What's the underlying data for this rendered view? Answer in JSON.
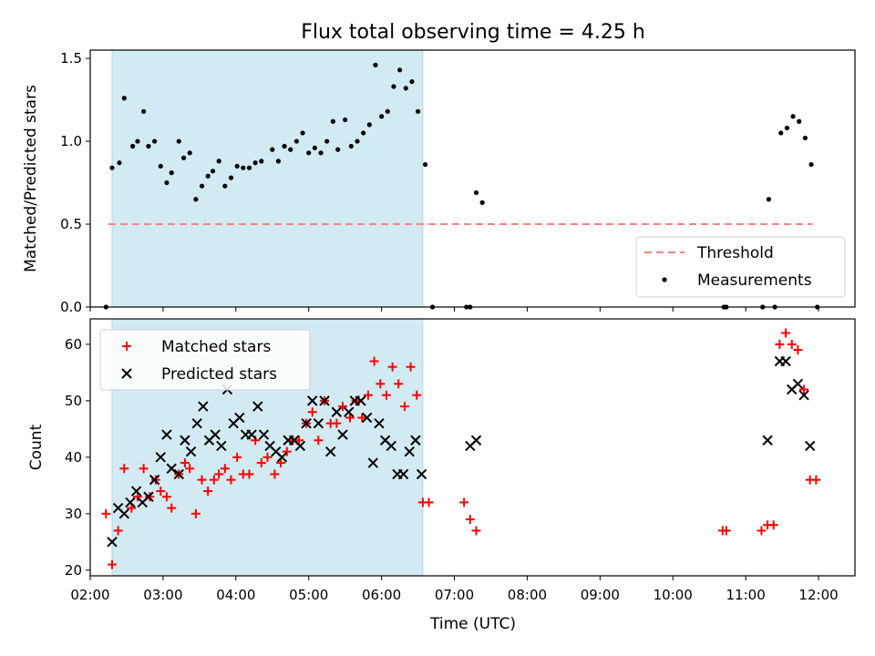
{
  "title": "Flux total observing time = 4.25 h",
  "colors": {
    "matched": "#ff0000",
    "predicted": "#000000",
    "measurement": "#000000",
    "threshold": "#ff7f7f",
    "span": "#add8e6"
  },
  "chart_data": [
    {
      "type": "scatter",
      "xlabel": "",
      "ylabel": "Matched/Predicted stars",
      "xlim": [
        "02:00",
        "12:30"
      ],
      "ylim": [
        0,
        1.55
      ],
      "yticks": [
        "0.0",
        "0.5",
        "1.0",
        "1.5"
      ],
      "shaded_interval": [
        "02:18",
        "06:34"
      ],
      "legend": {
        "position": "lower right",
        "entries": [
          "Threshold",
          "Measurements"
        ]
      },
      "threshold": {
        "name": "Threshold",
        "value": 0.5,
        "x_range": [
          "02:15",
          "11:55"
        ],
        "style": "dashed"
      },
      "series": [
        {
          "name": "Measurements",
          "marker": "dot",
          "points": [
            [
              "02:13",
              0.0
            ],
            [
              "02:18",
              0.84
            ],
            [
              "02:24",
              0.87
            ],
            [
              "02:28",
              1.26
            ],
            [
              "02:35",
              0.97
            ],
            [
              "02:39",
              1.0
            ],
            [
              "02:44",
              1.18
            ],
            [
              "02:48",
              0.97
            ],
            [
              "02:53",
              1.0
            ],
            [
              "02:58",
              0.85
            ],
            [
              "03:03",
              0.75
            ],
            [
              "03:07",
              0.81
            ],
            [
              "03:13",
              1.0
            ],
            [
              "03:17",
              0.9
            ],
            [
              "03:22",
              0.93
            ],
            [
              "03:27",
              0.65
            ],
            [
              "03:32",
              0.73
            ],
            [
              "03:37",
              0.79
            ],
            [
              "03:41",
              0.82
            ],
            [
              "03:46",
              0.88
            ],
            [
              "03:51",
              0.73
            ],
            [
              "03:56",
              0.78
            ],
            [
              "04:01",
              0.85
            ],
            [
              "04:06",
              0.84
            ],
            [
              "04:11",
              0.84
            ],
            [
              "04:16",
              0.87
            ],
            [
              "04:21",
              0.88
            ],
            [
              "04:30",
              0.95
            ],
            [
              "04:35",
              0.88
            ],
            [
              "04:40",
              0.97
            ],
            [
              "04:45",
              0.95
            ],
            [
              "04:50",
              1.0
            ],
            [
              "04:55",
              1.05
            ],
            [
              "05:00",
              0.93
            ],
            [
              "05:05",
              0.96
            ],
            [
              "05:10",
              0.93
            ],
            [
              "05:15",
              1.0
            ],
            [
              "05:20",
              1.12
            ],
            [
              "05:24",
              0.95
            ],
            [
              "05:30",
              1.13
            ],
            [
              "05:35",
              0.97
            ],
            [
              "05:40",
              1.0
            ],
            [
              "05:45",
              1.05
            ],
            [
              "05:50",
              1.1
            ],
            [
              "05:55",
              1.46
            ],
            [
              "06:00",
              1.15
            ],
            [
              "06:05",
              1.18
            ],
            [
              "06:10",
              1.33
            ],
            [
              "06:15",
              1.43
            ],
            [
              "06:20",
              1.32
            ],
            [
              "06:25",
              1.36
            ],
            [
              "06:30",
              1.18
            ],
            [
              "06:36",
              0.86
            ],
            [
              "06:42",
              0.0
            ],
            [
              "07:10",
              0.0
            ],
            [
              "07:13",
              0.0
            ],
            [
              "07:18",
              0.69
            ],
            [
              "07:23",
              0.63
            ],
            [
              "10:42",
              0.0
            ],
            [
              "10:44",
              0.0
            ],
            [
              "11:14",
              0.0
            ],
            [
              "11:19",
              0.65
            ],
            [
              "11:24",
              0.0
            ],
            [
              "11:29",
              1.05
            ],
            [
              "11:34",
              1.08
            ],
            [
              "11:39",
              1.15
            ],
            [
              "11:44",
              1.12
            ],
            [
              "11:49",
              1.02
            ],
            [
              "11:54",
              0.86
            ],
            [
              "11:59",
              0.0
            ]
          ]
        }
      ]
    },
    {
      "type": "scatter",
      "xlabel": "Time (UTC)",
      "ylabel": "Count",
      "xlim": [
        "02:00",
        "12:30"
      ],
      "ylim": [
        19,
        64.5
      ],
      "xticks": [
        "02:00",
        "03:00",
        "04:00",
        "05:00",
        "06:00",
        "07:00",
        "08:00",
        "09:00",
        "10:00",
        "11:00",
        "12:00"
      ],
      "yticks": [
        "20",
        "30",
        "40",
        "50",
        "60"
      ],
      "shaded_interval": [
        "02:18",
        "06:34"
      ],
      "legend": {
        "position": "upper left",
        "entries": [
          "Matched stars",
          "Predicted stars"
        ]
      },
      "series": [
        {
          "name": "Matched stars",
          "marker": "plus",
          "points": [
            [
              "02:13",
              30
            ],
            [
              "02:18",
              21
            ],
            [
              "02:23",
              27
            ],
            [
              "02:28",
              38
            ],
            [
              "02:34",
              31
            ],
            [
              "02:39",
              33
            ],
            [
              "02:44",
              38
            ],
            [
              "02:49",
              33
            ],
            [
              "02:54",
              36
            ],
            [
              "02:58",
              34
            ],
            [
              "03:03",
              33
            ],
            [
              "03:07",
              31
            ],
            [
              "03:13",
              37
            ],
            [
              "03:18",
              39
            ],
            [
              "03:22",
              38
            ],
            [
              "03:27",
              30
            ],
            [
              "03:32",
              36
            ],
            [
              "03:37",
              34
            ],
            [
              "03:42",
              36
            ],
            [
              "03:46",
              37
            ],
            [
              "03:51",
              38
            ],
            [
              "03:56",
              36
            ],
            [
              "04:01",
              40
            ],
            [
              "04:06",
              37
            ],
            [
              "04:11",
              37
            ],
            [
              "04:16",
              43
            ],
            [
              "04:21",
              39
            ],
            [
              "04:26",
              40
            ],
            [
              "04:32",
              37
            ],
            [
              "04:37",
              39
            ],
            [
              "04:42",
              41
            ],
            [
              "04:47",
              43
            ],
            [
              "04:52",
              43
            ],
            [
              "04:58",
              46
            ],
            [
              "05:03",
              48
            ],
            [
              "05:08",
              43
            ],
            [
              "05:13",
              50
            ],
            [
              "05:18",
              46
            ],
            [
              "05:23",
              46
            ],
            [
              "05:28",
              49
            ],
            [
              "05:34",
              47
            ],
            [
              "05:39",
              50
            ],
            [
              "05:44",
              47
            ],
            [
              "05:49",
              51
            ],
            [
              "05:54",
              57
            ],
            [
              "05:59",
              53
            ],
            [
              "06:04",
              51
            ],
            [
              "06:09",
              56
            ],
            [
              "06:14",
              53
            ],
            [
              "06:19",
              49
            ],
            [
              "06:24",
              56
            ],
            [
              "06:29",
              51
            ],
            [
              "06:34",
              32
            ],
            [
              "06:39",
              32
            ],
            [
              "07:08",
              32
            ],
            [
              "07:13",
              29
            ],
            [
              "07:18",
              27
            ],
            [
              "10:41",
              27
            ],
            [
              "10:44",
              27
            ],
            [
              "11:13",
              27
            ],
            [
              "11:18",
              28
            ],
            [
              "11:23",
              28
            ],
            [
              "11:28",
              60
            ],
            [
              "11:33",
              62
            ],
            [
              "11:38",
              60
            ],
            [
              "11:43",
              59
            ],
            [
              "11:48",
              52
            ],
            [
              "11:53",
              36
            ],
            [
              "11:58",
              36
            ]
          ]
        },
        {
          "name": "Predicted stars",
          "marker": "x",
          "points": [
            [
              "02:18",
              25
            ],
            [
              "02:23",
              31
            ],
            [
              "02:28",
              30
            ],
            [
              "02:33",
              32
            ],
            [
              "02:38",
              34
            ],
            [
              "02:43",
              32
            ],
            [
              "02:48",
              33
            ],
            [
              "02:53",
              36
            ],
            [
              "02:58",
              40
            ],
            [
              "03:03",
              44
            ],
            [
              "03:07",
              38
            ],
            [
              "03:13",
              37
            ],
            [
              "03:18",
              43
            ],
            [
              "03:23",
              41
            ],
            [
              "03:28",
              46
            ],
            [
              "03:33",
              49
            ],
            [
              "03:38",
              43
            ],
            [
              "03:43",
              44
            ],
            [
              "03:48",
              42
            ],
            [
              "03:53",
              52
            ],
            [
              "03:58",
              46
            ],
            [
              "04:03",
              47
            ],
            [
              "04:08",
              44
            ],
            [
              "04:13",
              44
            ],
            [
              "04:18",
              49
            ],
            [
              "04:23",
              44
            ],
            [
              "04:28",
              42
            ],
            [
              "04:33",
              41
            ],
            [
              "04:38",
              40
            ],
            [
              "04:43",
              43
            ],
            [
              "04:48",
              43
            ],
            [
              "04:53",
              42
            ],
            [
              "04:58",
              46
            ],
            [
              "05:03",
              50
            ],
            [
              "05:08",
              46
            ],
            [
              "05:13",
              50
            ],
            [
              "05:18",
              41
            ],
            [
              "05:23",
              48
            ],
            [
              "05:28",
              44
            ],
            [
              "05:33",
              48
            ],
            [
              "05:38",
              50
            ],
            [
              "05:43",
              50
            ],
            [
              "05:48",
              47
            ],
            [
              "05:53",
              39
            ],
            [
              "05:58",
              46
            ],
            [
              "06:03",
              43
            ],
            [
              "06:08",
              42
            ],
            [
              "06:13",
              37
            ],
            [
              "06:18",
              37
            ],
            [
              "06:23",
              41
            ],
            [
              "06:28",
              43
            ],
            [
              "06:33",
              37
            ],
            [
              "07:13",
              42
            ],
            [
              "07:18",
              43
            ],
            [
              "11:18",
              43
            ],
            [
              "11:28",
              57
            ],
            [
              "11:33",
              57
            ],
            [
              "11:38",
              52
            ],
            [
              "11:43",
              53
            ],
            [
              "11:48",
              51
            ],
            [
              "11:53",
              42
            ]
          ]
        }
      ]
    }
  ]
}
